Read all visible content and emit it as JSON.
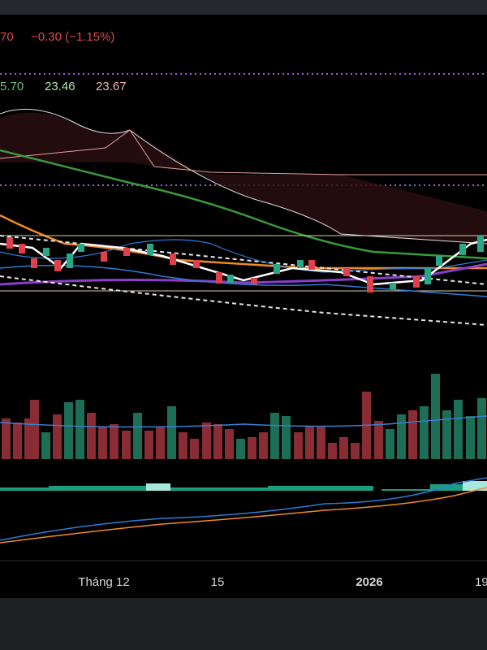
{
  "header": {
    "price_partial": "70",
    "change": "−0.30 (−1.15%)"
  },
  "indicators": {
    "value_1": "5.70",
    "value_2": "23.46",
    "value_3": "23.67"
  },
  "x_axis": {
    "labels": [
      "Tháng 12",
      "15",
      "2026",
      "19"
    ]
  }
}
